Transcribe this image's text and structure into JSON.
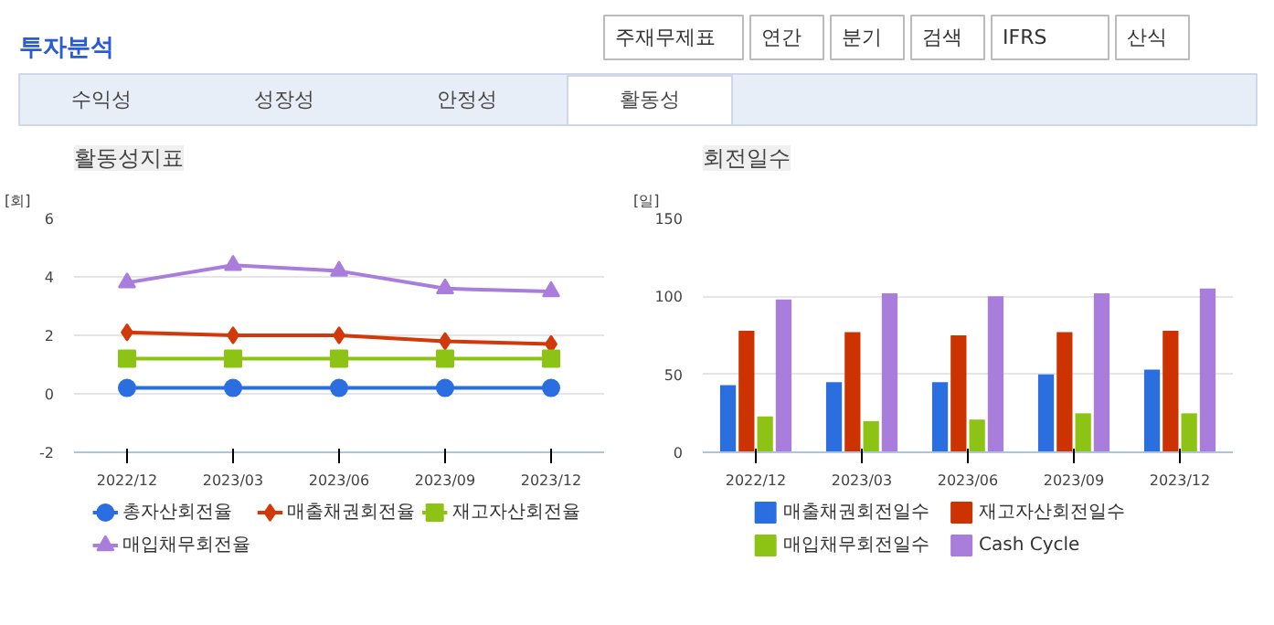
{
  "chart_data": [
    {
      "type": "other",
      "title": "투자분석",
      "annotations": [
        "주재무제표",
        "연간",
        "분기",
        "검색",
        "IFRS",
        "산식",
        "수익성",
        "성장성",
        "안정성",
        "활동성"
      ]
    },
    {
      "type": "line",
      "title": "활동성지표",
      "ylabel": "[회]",
      "categories": [
        "2022/12",
        "2023/03",
        "2023/06",
        "2023/09",
        "2023/12"
      ],
      "ylim": [
        -2,
        6
      ],
      "yticks": [
        -2,
        0,
        2,
        4,
        6
      ],
      "grid": "y",
      "legend": "bottom",
      "line_style": "solid",
      "series": [
        {
          "name": "총자산회전율",
          "color": "#2a6ee0",
          "marker": "circle",
          "values": [
            0.2,
            0.2,
            0.2,
            0.2,
            0.2
          ]
        },
        {
          "name": "매출채권회전율",
          "color": "#d03a0a",
          "marker": "diamond",
          "values": [
            2.1,
            2.0,
            2.0,
            1.8,
            1.7
          ]
        },
        {
          "name": "재고자산회전율",
          "color": "#8cc315",
          "marker": "square",
          "values": [
            1.2,
            1.2,
            1.2,
            1.2,
            1.2
          ]
        },
        {
          "name": "매입채무회전율",
          "color": "#a97ddb",
          "marker": "triangle",
          "values": [
            3.8,
            4.4,
            4.2,
            3.6,
            3.5
          ]
        }
      ]
    },
    {
      "type": "bar",
      "title": "회전일수",
      "ylabel": "[일]",
      "categories": [
        "2022/12",
        "2023/03",
        "2023/06",
        "2023/09",
        "2023/12"
      ],
      "ylim": [
        0,
        150
      ],
      "yticks": [
        0,
        50,
        100,
        150
      ],
      "grid": "y",
      "legend": "bottom",
      "series": [
        {
          "name": "매출채권회전일수",
          "color": "#2a6ee0",
          "values": [
            43,
            45,
            45,
            50,
            53
          ]
        },
        {
          "name": "재고자산회전일수",
          "color": "#cc3300",
          "values": [
            78,
            77,
            75,
            77,
            78
          ]
        },
        {
          "name": "매입채무회전일수",
          "color": "#8cc315",
          "values": [
            23,
            20,
            21,
            25,
            25
          ]
        },
        {
          "name": "Cash Cycle",
          "color": "#a97ddb",
          "values": [
            98,
            102,
            100,
            102,
            105
          ]
        }
      ]
    }
  ]
}
